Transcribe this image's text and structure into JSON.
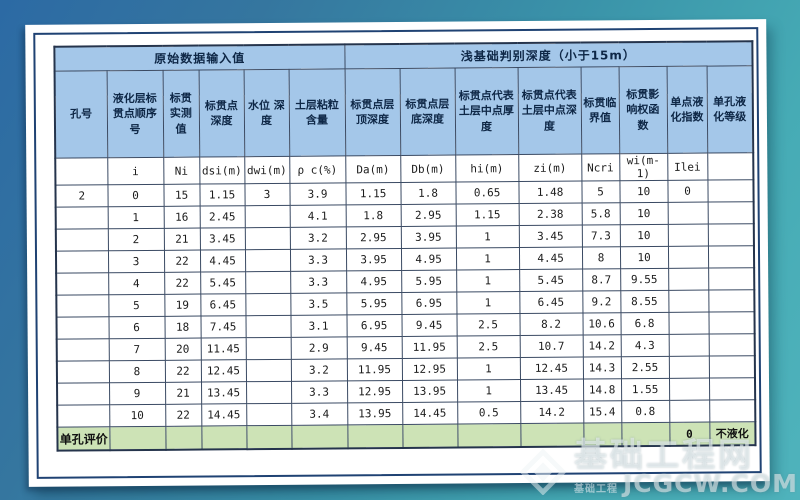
{
  "table": {
    "group_headers": [
      {
        "label": "原始数据输入值",
        "span": 6
      },
      {
        "label": "浅基础判别深度（小于15m）",
        "span": 8
      }
    ],
    "columns": [
      {
        "header": "孔号",
        "symbol": "",
        "width": 52
      },
      {
        "header": "液化层标贯点顺序号",
        "symbol": "i",
        "width": 56
      },
      {
        "header": "标贯实测值",
        "symbol": "Ni",
        "width": 36
      },
      {
        "header": "标贯点深度",
        "symbol": "dsi(m)",
        "width": 45
      },
      {
        "header": "水位 深度",
        "symbol": "dwi(m)",
        "width": 45
      },
      {
        "header": "土层粘粒 含量",
        "symbol": "ρ c(%)",
        "width": 56
      },
      {
        "header": "标贯点层顶深度",
        "symbol": "Da(m)",
        "width": 55
      },
      {
        "header": "标贯点层底深度",
        "symbol": "Db(m)",
        "width": 55
      },
      {
        "header": "标贯点代表土层中点厚度",
        "symbol": "hi(m)",
        "width": 63
      },
      {
        "header": "标贯点代表土层中点深度",
        "symbol": "zi(m)",
        "width": 63
      },
      {
        "header": "标贯临界值",
        "symbol": "Ncri",
        "width": 38
      },
      {
        "header": "标贯影响权函数",
        "symbol": "wi(m-1)",
        "width": 48
      },
      {
        "header": "单点液化指数",
        "symbol": "Ilei",
        "width": 40
      },
      {
        "header": "单孔液化等级",
        "symbol": "",
        "width": 46
      }
    ],
    "rows": [
      [
        "2",
        "0",
        "15",
        "1.15",
        "3",
        "3.9",
        "1.15",
        "1.8",
        "0.65",
        "1.48",
        "5",
        "10",
        "0",
        ""
      ],
      [
        "",
        "1",
        "16",
        "2.45",
        "",
        "4.1",
        "1.8",
        "2.95",
        "1.15",
        "2.38",
        "5.8",
        "10",
        "",
        ""
      ],
      [
        "",
        "2",
        "21",
        "3.45",
        "",
        "3.2",
        "2.95",
        "3.95",
        "1",
        "3.45",
        "7.3",
        "10",
        "",
        ""
      ],
      [
        "",
        "3",
        "22",
        "4.45",
        "",
        "3.3",
        "3.95",
        "4.95",
        "1",
        "4.45",
        "8",
        "10",
        "",
        ""
      ],
      [
        "",
        "4",
        "22",
        "5.45",
        "",
        "3.3",
        "4.95",
        "5.95",
        "1",
        "5.45",
        "8.7",
        "9.55",
        "",
        ""
      ],
      [
        "",
        "5",
        "19",
        "6.45",
        "",
        "3.5",
        "5.95",
        "6.95",
        "1",
        "6.45",
        "9.2",
        "8.55",
        "",
        ""
      ],
      [
        "",
        "6",
        "18",
        "7.45",
        "",
        "3.1",
        "6.95",
        "9.45",
        "2.5",
        "8.2",
        "10.6",
        "6.8",
        "",
        ""
      ],
      [
        "",
        "7",
        "20",
        "11.45",
        "",
        "2.9",
        "9.45",
        "11.95",
        "2.5",
        "10.7",
        "14.2",
        "4.3",
        "",
        ""
      ],
      [
        "",
        "8",
        "22",
        "12.45",
        "",
        "3.2",
        "11.95",
        "12.95",
        "1",
        "12.45",
        "14.3",
        "2.55",
        "",
        ""
      ],
      [
        "",
        "9",
        "21",
        "13.45",
        "",
        "3.3",
        "12.95",
        "13.95",
        "1",
        "13.45",
        "14.8",
        "1.55",
        "",
        ""
      ],
      [
        "",
        "10",
        "22",
        "14.45",
        "",
        "3.4",
        "13.95",
        "14.45",
        "0.5",
        "14.2",
        "15.4",
        "0.8",
        "",
        ""
      ]
    ],
    "footer_row": [
      "单孔评价",
      "",
      "",
      "",
      "",
      "",
      "",
      "",
      "",
      "",
      "",
      "",
      "0",
      "不液化"
    ]
  },
  "watermark": {
    "site_name": "基础工程网",
    "site_url": "JCGCW.COM",
    "small_text": "基础工程"
  },
  "colors": {
    "header_blue": "#a4c7e9",
    "footer_green": "#cde3b6",
    "border_navy": "#1f4273",
    "bg_blue": "#2c6aa4",
    "bg_teal": "#4fb3bc"
  }
}
